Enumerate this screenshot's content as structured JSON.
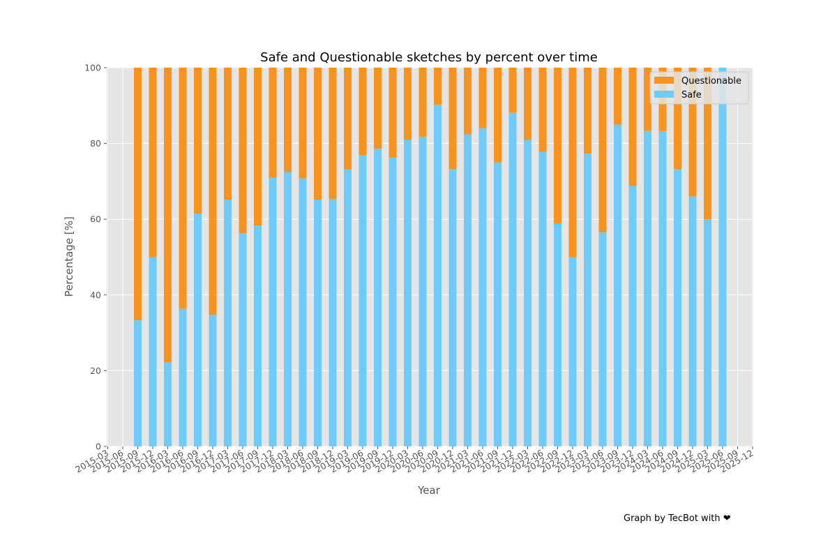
{
  "chart_data": {
    "type": "bar",
    "stacked": true,
    "title": "Safe and Questionable sketches by percent over time",
    "xlabel": "Year",
    "ylabel": "Percentage [%]",
    "ylim": [
      0,
      100
    ],
    "yticks": [
      0,
      20,
      40,
      60,
      80,
      100
    ],
    "grid": true,
    "legend_position": "top-right",
    "x_ticks": [
      "2015-03",
      "2015-06",
      "2015-09",
      "2015-12",
      "2016-03",
      "2016-06",
      "2016-09",
      "2016-12",
      "2017-03",
      "2017-06",
      "2017-09",
      "2017-12",
      "2018-03",
      "2018-06",
      "2018-09",
      "2018-12",
      "2019-03",
      "2019-06",
      "2019-09",
      "2019-12",
      "2020-03",
      "2020-06",
      "2020-09",
      "2020-12",
      "2021-03",
      "2021-06",
      "2021-09",
      "2021-12",
      "2022-03",
      "2022-06",
      "2022-09",
      "2022-12",
      "2023-03",
      "2023-06",
      "2023-09",
      "2023-12",
      "2024-03",
      "2024-06",
      "2024-09",
      "2024-12",
      "2025-03",
      "2025-06",
      "2025-09",
      "2025-12"
    ],
    "x": [
      "2015-09",
      "2015-12",
      "2016-03",
      "2016-06",
      "2016-09",
      "2016-12",
      "2017-03",
      "2017-06",
      "2017-09",
      "2017-12",
      "2018-03",
      "2018-06",
      "2018-09",
      "2018-12",
      "2019-03",
      "2019-06",
      "2019-09",
      "2019-12",
      "2020-03",
      "2020-06",
      "2020-09",
      "2020-12",
      "2021-03",
      "2021-06",
      "2021-09",
      "2021-12",
      "2022-03",
      "2022-06",
      "2022-09",
      "2022-12",
      "2023-03",
      "2023-06",
      "2023-09",
      "2023-12",
      "2024-03",
      "2024-06",
      "2024-09",
      "2024-12",
      "2025-03",
      "2025-06"
    ],
    "series": [
      {
        "name": "Safe",
        "color": "#6ecbfc",
        "values": [
          33.3,
          50,
          22.2,
          36.4,
          61.5,
          34.8,
          65.2,
          56.3,
          58.3,
          71,
          72.4,
          70.8,
          65.2,
          65.4,
          73.2,
          76.9,
          78.6,
          76.2,
          80.9,
          81.8,
          90.2,
          73.3,
          82.4,
          84,
          75,
          88.1,
          80.9,
          77.8,
          58.8,
          50,
          77.3,
          56.5,
          85,
          68.8,
          83.3,
          83.3,
          73.3,
          66,
          60,
          100
        ]
      },
      {
        "name": "Questionable",
        "color": "#f7931e",
        "values": [
          66.7,
          50,
          77.8,
          63.6,
          38.5,
          65.2,
          34.8,
          43.7,
          41.7,
          29,
          27.6,
          29.2,
          34.8,
          34.6,
          26.8,
          23.1,
          21.4,
          23.8,
          19.1,
          18.2,
          9.8,
          26.7,
          17.6,
          16,
          25,
          11.9,
          19.1,
          22.2,
          41.2,
          50,
          22.7,
          43.5,
          15,
          31.2,
          16.7,
          16.7,
          26.7,
          34,
          40,
          0
        ]
      }
    ],
    "legend_order": [
      "Questionable",
      "Safe"
    ]
  },
  "footer": {
    "credit": "Graph by TecBot with ❤"
  },
  "colors": {
    "plot_background": "#e5e5e5",
    "grid": "#ffffff"
  }
}
